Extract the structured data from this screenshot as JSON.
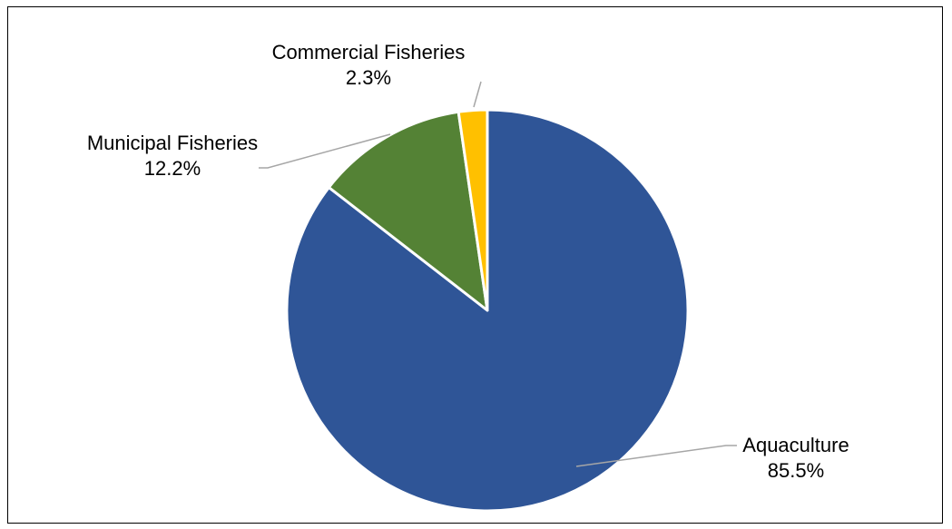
{
  "chart_data": {
    "type": "pie",
    "title": "",
    "slices": [
      {
        "name": "Aquaculture",
        "value": 85.5,
        "label": "85.5%",
        "color": "#2f5597"
      },
      {
        "name": "Municipal Fisheries",
        "value": 12.2,
        "label": "12.2%",
        "color": "#548235"
      },
      {
        "name": "Commercial Fisheries",
        "value": 2.3,
        "label": "2.3%",
        "color": "#ffc000"
      }
    ],
    "start_angle_deg": 0,
    "direction": "clockwise",
    "slice_border_color": "#ffffff",
    "leader_line_color": "#a6a6a6",
    "legend": "none"
  }
}
